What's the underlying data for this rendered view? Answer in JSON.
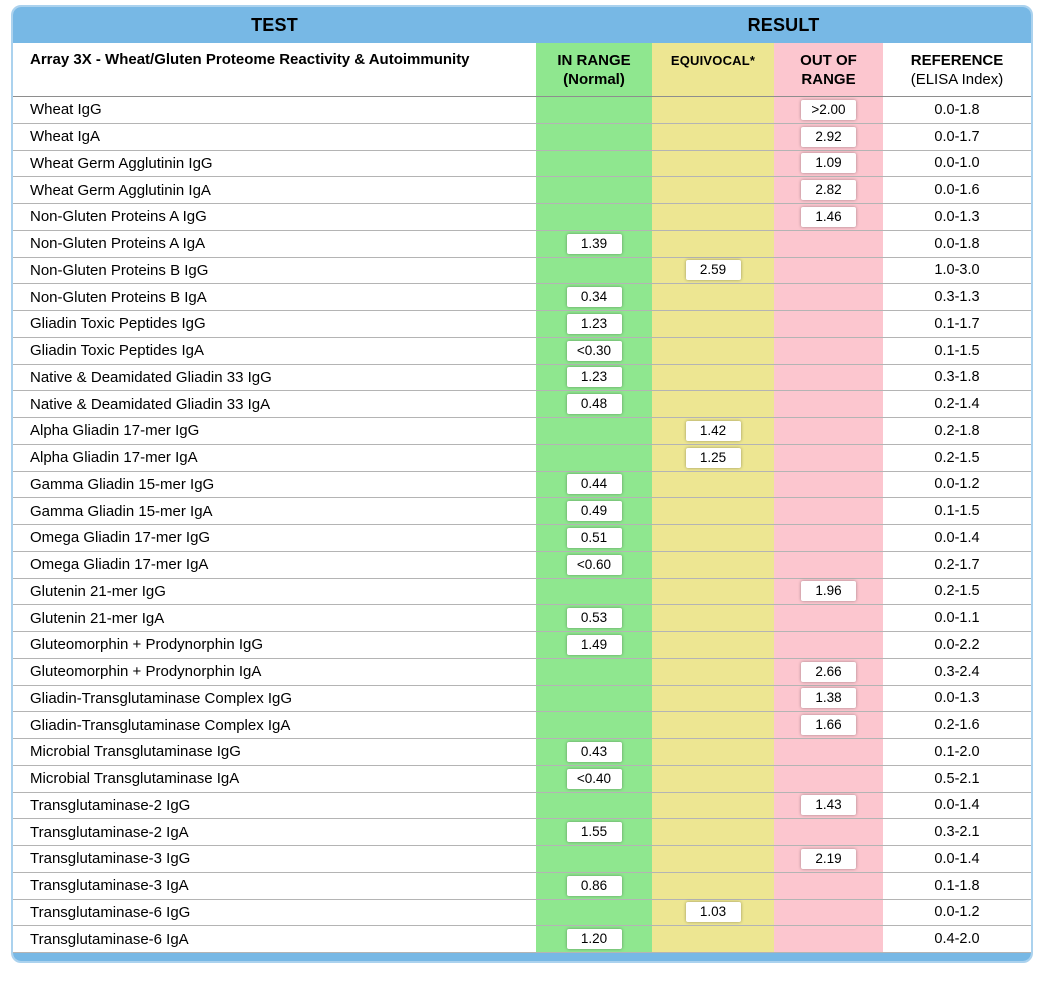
{
  "header": {
    "test_label": "TEST",
    "result_label": "RESULT"
  },
  "subheader": {
    "panel_title": "Array 3X - Wheat/Gluten Proteome Reactivity & Autoimmunity",
    "columns": [
      {
        "label": "IN RANGE",
        "sublabel": "(Normal)",
        "status": "in"
      },
      {
        "label": "EQUIVOCAL*",
        "sublabel": "",
        "status": "equivocal"
      },
      {
        "label": "OUT OF",
        "sublabel": "RANGE",
        "status": "out"
      },
      {
        "label": "REFERENCE",
        "sublabel": "(ELISA Index)",
        "status": "reference"
      }
    ]
  },
  "colors": {
    "header_blue": "#77b8e5",
    "border_blue": "#abd2ee",
    "in_range_green": "#8fe78f",
    "equivocal_yellow": "#ede692",
    "out_of_range_pink": "#fcc6cf"
  },
  "rows": [
    {
      "test": "Wheat IgG",
      "value": ">2.00",
      "status": "out",
      "reference": "0.0-1.8"
    },
    {
      "test": "Wheat IgA",
      "value": "2.92",
      "status": "out",
      "reference": "0.0-1.7"
    },
    {
      "test": "Wheat Germ Agglutinin IgG",
      "value": "1.09",
      "status": "out",
      "reference": "0.0-1.0"
    },
    {
      "test": "Wheat Germ Agglutinin IgA",
      "value": "2.82",
      "status": "out",
      "reference": "0.0-1.6"
    },
    {
      "test": "Non-Gluten Proteins A IgG",
      "value": "1.46",
      "status": "out",
      "reference": "0.0-1.3"
    },
    {
      "test": "Non-Gluten Proteins A IgA",
      "value": "1.39",
      "status": "in",
      "reference": "0.0-1.8"
    },
    {
      "test": "Non-Gluten Proteins B IgG",
      "value": "2.59",
      "status": "equivocal",
      "reference": "1.0-3.0"
    },
    {
      "test": "Non-Gluten Proteins B IgA",
      "value": "0.34",
      "status": "in",
      "reference": "0.3-1.3"
    },
    {
      "test": "Gliadin Toxic Peptides IgG",
      "value": "1.23",
      "status": "in",
      "reference": "0.1-1.7"
    },
    {
      "test": "Gliadin Toxic Peptides IgA",
      "value": "<0.30",
      "status": "in",
      "reference": "0.1-1.5"
    },
    {
      "test": "Native & Deamidated Gliadin 33 IgG",
      "value": "1.23",
      "status": "in",
      "reference": "0.3-1.8"
    },
    {
      "test": "Native & Deamidated Gliadin 33 IgA",
      "value": "0.48",
      "status": "in",
      "reference": "0.2-1.4"
    },
    {
      "test": "Alpha Gliadin 17-mer IgG",
      "value": "1.42",
      "status": "equivocal",
      "reference": "0.2-1.8"
    },
    {
      "test": "Alpha Gliadin 17-mer IgA",
      "value": "1.25",
      "status": "equivocal",
      "reference": "0.2-1.5"
    },
    {
      "test": "Gamma Gliadin 15-mer IgG",
      "value": "0.44",
      "status": "in",
      "reference": "0.0-1.2"
    },
    {
      "test": "Gamma Gliadin 15-mer IgA",
      "value": "0.49",
      "status": "in",
      "reference": "0.1-1.5"
    },
    {
      "test": "Omega Gliadin 17-mer IgG",
      "value": "0.51",
      "status": "in",
      "reference": "0.0-1.4"
    },
    {
      "test": "Omega Gliadin 17-mer IgA",
      "value": "<0.60",
      "status": "in",
      "reference": "0.2-1.7"
    },
    {
      "test": "Glutenin 21-mer IgG",
      "value": "1.96",
      "status": "out",
      "reference": "0.2-1.5"
    },
    {
      "test": "Glutenin 21-mer IgA",
      "value": "0.53",
      "status": "in",
      "reference": "0.0-1.1"
    },
    {
      "test": "Gluteomorphin + Prodynorphin IgG",
      "value": "1.49",
      "status": "in",
      "reference": "0.0-2.2"
    },
    {
      "test": "Gluteomorphin + Prodynorphin IgA",
      "value": "2.66",
      "status": "out",
      "reference": "0.3-2.4"
    },
    {
      "test": "Gliadin-Transglutaminase Complex IgG",
      "value": "1.38",
      "status": "out",
      "reference": "0.0-1.3"
    },
    {
      "test": "Gliadin-Transglutaminase Complex IgA",
      "value": "1.66",
      "status": "out",
      "reference": "0.2-1.6"
    },
    {
      "test": "Microbial Transglutaminase IgG",
      "value": "0.43",
      "status": "in",
      "reference": "0.1-2.0"
    },
    {
      "test": "Microbial Transglutaminase IgA",
      "value": "<0.40",
      "status": "in",
      "reference": "0.5-2.1"
    },
    {
      "test": "Transglutaminase-2 IgG",
      "value": "1.43",
      "status": "out",
      "reference": "0.0-1.4"
    },
    {
      "test": "Transglutaminase-2 IgA",
      "value": "1.55",
      "status": "in",
      "reference": "0.3-2.1"
    },
    {
      "test": "Transglutaminase-3 IgG",
      "value": "2.19",
      "status": "out",
      "reference": "0.0-1.4"
    },
    {
      "test": "Transglutaminase-3 IgA",
      "value": "0.86",
      "status": "in",
      "reference": "0.1-1.8"
    },
    {
      "test": "Transglutaminase-6 IgG",
      "value": "1.03",
      "status": "equivocal",
      "reference": "0.0-1.2"
    },
    {
      "test": "Transglutaminase-6 IgA",
      "value": "1.20",
      "status": "in",
      "reference": "0.4-2.0"
    }
  ]
}
